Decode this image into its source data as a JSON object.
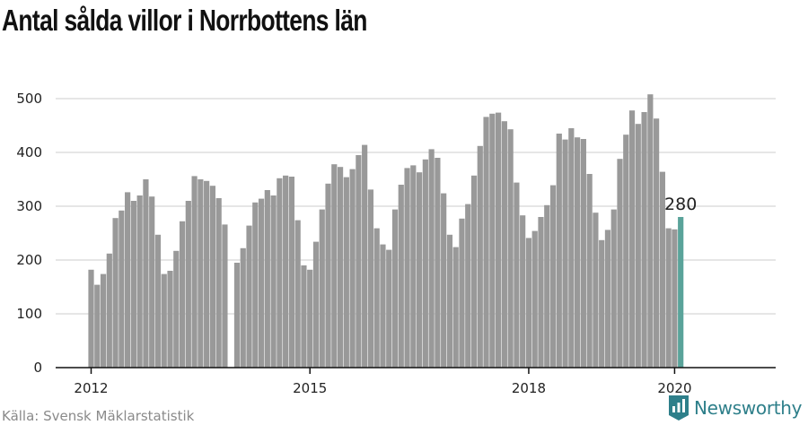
{
  "title": "Antal sålda villor i Norrbottens län",
  "source": "Källa: Svensk Mäklarstatistik",
  "brand": "Newsworthy",
  "colors": {
    "bar": "#999999",
    "highlight": "#5aa39a",
    "grid": "#dddddd",
    "axis": "#111111",
    "brand": "#2e7f8a"
  },
  "chart_data": {
    "type": "bar",
    "title": "Antal sålda villor i Norrbottens län",
    "xlabel": "",
    "ylabel": "",
    "ylim": [
      0,
      500
    ],
    "yticks": [
      0,
      100,
      200,
      300,
      400,
      500
    ],
    "xticks": [
      "2012",
      "2015",
      "2018",
      "2020"
    ],
    "grid": true,
    "categories": [
      "2012-01",
      "2012-02",
      "2012-03",
      "2012-04",
      "2012-05",
      "2012-06",
      "2012-07",
      "2012-08",
      "2012-09",
      "2012-10",
      "2012-11",
      "2012-12",
      "2013-01",
      "2013-02",
      "2013-03",
      "2013-04",
      "2013-05",
      "2013-06",
      "2013-07",
      "2013-08",
      "2013-09",
      "2013-10",
      "2013-11",
      "2013-12",
      "2014-01",
      "2014-02",
      "2014-03",
      "2014-04",
      "2014-05",
      "2014-06",
      "2014-07",
      "2014-08",
      "2014-09",
      "2014-10",
      "2014-11",
      "2014-12",
      "2015-01",
      "2015-02",
      "2015-03",
      "2015-04",
      "2015-05",
      "2015-06",
      "2015-07",
      "2015-08",
      "2015-09",
      "2015-10",
      "2015-11",
      "2015-12",
      "2016-01",
      "2016-02",
      "2016-03",
      "2016-04",
      "2016-05",
      "2016-06",
      "2016-07",
      "2016-08",
      "2016-09",
      "2016-10",
      "2016-11",
      "2016-12",
      "2017-01",
      "2017-02",
      "2017-03",
      "2017-04",
      "2017-05",
      "2017-06",
      "2017-07",
      "2017-08",
      "2017-09",
      "2017-10",
      "2017-11",
      "2017-12",
      "2018-01",
      "2018-02",
      "2018-03",
      "2018-04",
      "2018-05",
      "2018-06",
      "2018-07",
      "2018-08",
      "2018-09",
      "2018-10",
      "2018-11",
      "2018-12",
      "2019-01",
      "2019-02",
      "2019-03",
      "2019-04",
      "2019-05",
      "2019-06",
      "2019-07",
      "2019-08",
      "2019-09",
      "2019-10",
      "2019-11",
      "2019-12",
      "2020-01",
      "2020-02"
    ],
    "values": [
      182,
      154,
      174,
      212,
      278,
      292,
      326,
      310,
      320,
      350,
      318,
      247,
      174,
      180,
      217,
      272,
      310,
      356,
      350,
      347,
      338,
      315,
      266,
      null,
      195,
      222,
      264,
      307,
      314,
      330,
      320,
      352,
      357,
      355,
      274,
      190,
      182,
      234,
      294,
      342,
      378,
      373,
      354,
      369,
      395,
      414,
      331,
      259,
      229,
      219,
      294,
      340,
      371,
      376,
      363,
      387,
      406,
      390,
      324,
      247,
      224,
      277,
      304,
      357,
      412,
      466,
      472,
      474,
      458,
      443,
      344,
      283,
      241,
      254,
      280,
      302,
      339,
      435,
      424,
      445,
      428,
      425,
      360,
      288,
      237,
      256,
      294,
      388,
      433,
      478,
      453,
      475,
      508,
      463,
      364,
      259,
      257,
      280
    ],
    "highlight_index": 97,
    "annotation": {
      "index": 97,
      "text": "280"
    }
  }
}
